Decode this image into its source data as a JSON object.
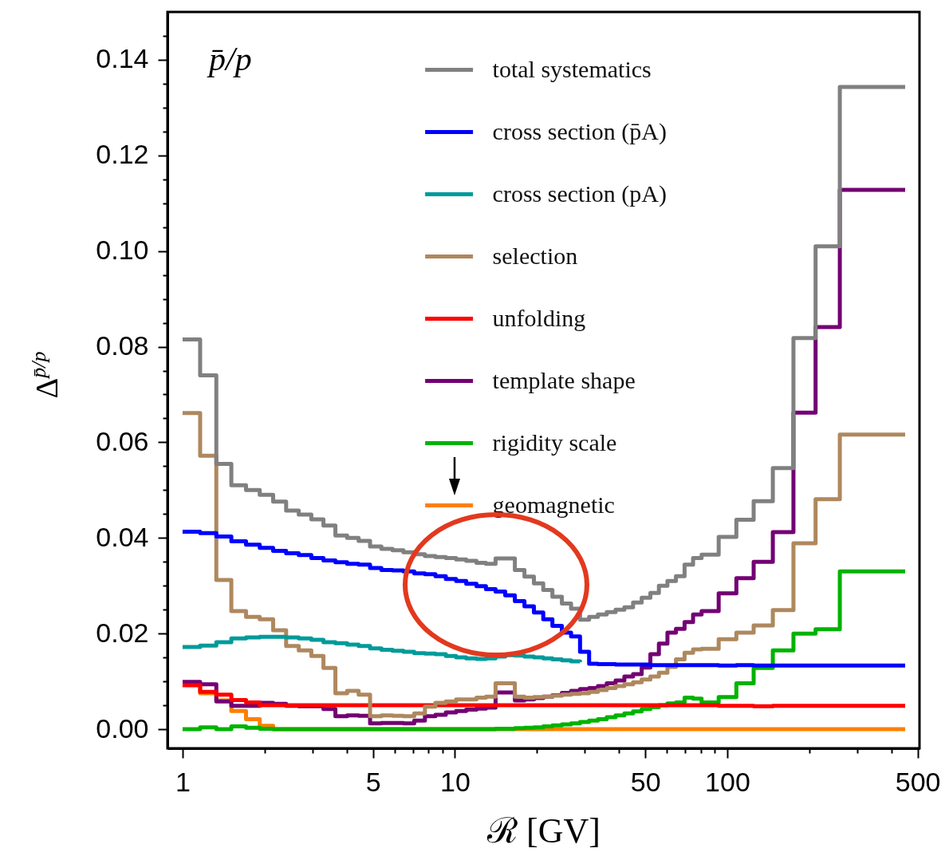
{
  "chart_data": {
    "type": "step",
    "title": "p̄/p",
    "xlabel": "ℛ [GV]",
    "ylabel": "Δ$^{p̄/p}$",
    "log": "x",
    "legend": "top right",
    "x": [
      1.0,
      1.16,
      1.33,
      1.51,
      1.71,
      1.92,
      2.15,
      2.4,
      2.67,
      2.97,
      3.29,
      3.64,
      4.02,
      4.43,
      4.88,
      5.37,
      5.9,
      6.47,
      7.09,
      7.76,
      8.48,
      9.26,
      10.1,
      11.0,
      12.0,
      13.0,
      14.1,
      15.3,
      16.6,
      18.0,
      19.5,
      21.1,
      22.8,
      24.7,
      26.7,
      28.8,
      31.1,
      33.5,
      36.1,
      38.9,
      41.9,
      45.1,
      48.5,
      52.2,
      56.1,
      60.3,
      64.8,
      69.7,
      74.9,
      80.5,
      93.0,
      108,
      125,
      147,
      175,
      211,
      259,
      450
    ],
    "xlim": [
      0.88,
      508
    ],
    "xticks": [
      1,
      {
        "value": 2,
        "label": null
      },
      {
        "value": 3,
        "label": null
      },
      {
        "value": 4,
        "label": null
      },
      5,
      {
        "value": 6,
        "label": null
      },
      {
        "value": 7,
        "label": null
      },
      {
        "value": 8,
        "label": null
      },
      {
        "value": 9,
        "label": null
      },
      10,
      {
        "value": 20,
        "label": null
      },
      {
        "value": 30,
        "label": null
      },
      {
        "value": 40,
        "label": null
      },
      50,
      {
        "value": 60,
        "label": null
      },
      {
        "value": 70,
        "label": null
      },
      {
        "value": 80,
        "label": null
      },
      {
        "value": 90,
        "label": null
      },
      100,
      {
        "value": 200,
        "label": null
      },
      {
        "value": 300,
        "label": null
      },
      {
        "value": 400,
        "label": null
      },
      500
    ],
    "ylim": [
      -0.004,
      0.15
    ],
    "yticks": [
      {
        "value": 0,
        "label": "0.00"
      },
      {
        "value": 0.005,
        "label": null
      },
      {
        "value": 0.01,
        "label": null
      },
      {
        "value": 0.015,
        "label": null
      },
      0.02,
      {
        "value": 0.025,
        "label": null
      },
      {
        "value": 0.03,
        "label": null
      },
      {
        "value": 0.035,
        "label": null
      },
      0.04,
      {
        "value": 0.045,
        "label": null
      },
      {
        "value": 0.05,
        "label": null
      },
      {
        "value": 0.055,
        "label": null
      },
      0.06,
      {
        "value": 0.065,
        "label": null
      },
      {
        "value": 0.07,
        "label": null
      },
      {
        "value": 0.075,
        "label": null
      },
      0.08,
      {
        "value": 0.085,
        "label": null
      },
      {
        "value": 0.09,
        "label": null
      },
      {
        "value": 0.095,
        "label": null
      },
      {
        "value": 0.1,
        "label": "0.10"
      },
      {
        "value": 0.105,
        "label": null
      },
      {
        "value": 0.11,
        "label": null
      },
      {
        "value": 0.115,
        "label": null
      },
      0.12,
      {
        "value": 0.125,
        "label": null
      },
      {
        "value": 0.13,
        "label": null
      },
      {
        "value": 0.135,
        "label": null
      },
      0.14,
      {
        "value": 0.145,
        "label": null
      }
    ],
    "series": [
      {
        "name": "total systematics",
        "color": "#808080",
        "values": [
          0.0815,
          0.074,
          0.0555,
          0.051,
          0.05,
          0.049,
          0.0476,
          0.0457,
          0.0449,
          0.0439,
          0.0426,
          0.0405,
          0.04,
          0.0394,
          0.0382,
          0.0377,
          0.0374,
          0.037,
          0.0366,
          0.0362,
          0.036,
          0.0358,
          0.0355,
          0.0352,
          0.0348,
          0.0346,
          0.0357,
          0.0357,
          0.0333,
          0.0319,
          0.0305,
          0.0291,
          0.0277,
          0.0263,
          0.0252,
          0.0229,
          0.0235,
          0.024,
          0.0245,
          0.025,
          0.0255,
          0.0265,
          0.0275,
          0.0285,
          0.03,
          0.031,
          0.032,
          0.0344,
          0.0358,
          0.0365,
          0.0402,
          0.0438,
          0.0477,
          0.0546,
          0.0818,
          0.101,
          0.1343,
          0.1343
        ]
      },
      {
        "name": "cross section (p̄A)",
        "color": "#0000ff",
        "values": [
          0.0413,
          0.041,
          0.0403,
          0.0393,
          0.0386,
          0.0379,
          0.0373,
          0.0368,
          0.0364,
          0.0358,
          0.0353,
          0.0349,
          0.0346,
          0.0344,
          0.0337,
          0.0333,
          0.0332,
          0.033,
          0.0326,
          0.0324,
          0.032,
          0.0314,
          0.031,
          0.0304,
          0.0299,
          0.0293,
          0.0288,
          0.028,
          0.0268,
          0.0257,
          0.0244,
          0.023,
          0.0216,
          0.0202,
          0.0194,
          0.0162,
          0.0137,
          0.0136,
          0.0136,
          0.0135,
          0.0135,
          0.0135,
          0.0135,
          0.0134,
          0.0134,
          0.0134,
          0.0134,
          0.0134,
          0.0134,
          0.0134,
          0.0133,
          0.0134,
          0.0133,
          0.0133,
          0.0133,
          0.0133,
          0.0133,
          0.0133
        ]
      },
      {
        "name": "cross section (pA)",
        "color": "#009a9a",
        "values": [
          0.0172,
          0.0175,
          0.0182,
          0.019,
          0.0192,
          0.0193,
          0.0193,
          0.0192,
          0.019,
          0.0187,
          0.0182,
          0.018,
          0.0177,
          0.0174,
          0.0169,
          0.0166,
          0.0164,
          0.0162,
          0.0159,
          0.0158,
          0.0157,
          0.0153,
          0.015,
          0.0148,
          0.0147,
          0.0148,
          0.0152,
          0.0155,
          0.0154,
          0.0152,
          0.015,
          0.0148,
          0.0146,
          0.0144,
          0.0142,
          0.014,
          null,
          null,
          null,
          null,
          null,
          null,
          null,
          null,
          null,
          null,
          null,
          null,
          null,
          null,
          null,
          null,
          null,
          null,
          null,
          null,
          null,
          null
        ]
      },
      {
        "name": "selection",
        "color": "#ae885e",
        "values": [
          0.0661,
          0.0572,
          0.0312,
          0.0247,
          0.0235,
          0.023,
          0.0207,
          0.0174,
          0.0165,
          0.0153,
          0.0128,
          0.0075,
          0.008,
          0.0072,
          0.0027,
          0.0029,
          0.0028,
          0.0027,
          0.0033,
          0.0047,
          0.0055,
          0.0058,
          0.0062,
          0.0062,
          0.0066,
          0.0068,
          0.0096,
          0.0096,
          0.0068,
          0.0066,
          0.0067,
          0.0068,
          0.007,
          0.0072,
          0.0074,
          0.0075,
          0.0078,
          0.0082,
          0.0086,
          0.009,
          0.0094,
          0.0098,
          0.0104,
          0.011,
          0.0118,
          0.013,
          0.0146,
          0.016,
          0.0167,
          0.0168,
          0.0188,
          0.0202,
          0.0217,
          0.0249,
          0.0389,
          0.0481,
          0.0616,
          0.0616
        ]
      },
      {
        "name": "unfolding",
        "color": "#ff0000",
        "values": [
          0.0092,
          0.0078,
          0.0072,
          0.0061,
          0.0056,
          0.005,
          0.005,
          0.005,
          0.005,
          0.005,
          0.005,
          0.005,
          0.005,
          0.005,
          0.005,
          0.005,
          0.005,
          0.005,
          0.005,
          0.005,
          0.005,
          0.005,
          0.005,
          0.005,
          0.005,
          0.005,
          0.005,
          0.005,
          0.005,
          0.005,
          0.005,
          0.005,
          0.005,
          0.005,
          0.005,
          0.005,
          0.005,
          0.005,
          0.005,
          0.005,
          0.005,
          0.005,
          0.005,
          0.005,
          0.005,
          0.005,
          0.005,
          0.005,
          0.005,
          0.005,
          0.0049,
          0.0049,
          0.0048,
          0.0049,
          0.0049,
          0.0049,
          0.0049,
          0.0049
        ]
      },
      {
        "name": "template shape",
        "color": "#730073",
        "values": [
          0.0099,
          0.0094,
          0.0058,
          0.0049,
          0.0049,
          0.0055,
          0.0053,
          0.0049,
          0.0048,
          0.0048,
          0.0042,
          0.0027,
          0.0029,
          0.0028,
          0.0012,
          0.0013,
          0.0013,
          0.0012,
          0.0018,
          0.0027,
          0.003,
          0.0035,
          0.0038,
          0.0041,
          0.0043,
          0.0045,
          0.0077,
          0.0077,
          0.006,
          0.0062,
          0.0065,
          0.0068,
          0.0071,
          0.0076,
          0.008,
          0.0084,
          0.0086,
          0.009,
          0.0096,
          0.0102,
          0.011,
          0.0115,
          0.0129,
          0.0157,
          0.0179,
          0.0202,
          0.021,
          0.0224,
          0.024,
          0.0247,
          0.0284,
          0.0316,
          0.035,
          0.0412,
          0.0662,
          0.0841,
          0.1128,
          0.1128
        ]
      },
      {
        "name": "rigidity scale",
        "color": "#00b300",
        "values": [
          0,
          0.0004,
          0,
          0.0006,
          0.0003,
          0.0001,
          0,
          0,
          0,
          0,
          0,
          0,
          0,
          0,
          0,
          0,
          0,
          0,
          0,
          0,
          0,
          0,
          0,
          0,
          0,
          0,
          0.0001,
          0.0001,
          0.0002,
          0.0003,
          0.0004,
          0.0006,
          0.0008,
          0.001,
          0.0012,
          0.0015,
          0.0018,
          0.0021,
          0.0025,
          0.0029,
          0.0033,
          0.0037,
          0.0042,
          0.0046,
          0.005,
          0.0054,
          0.0056,
          0.0066,
          0.0064,
          0.0056,
          0.0067,
          0.0096,
          0.0128,
          0.0165,
          0.02,
          0.0209,
          0.033,
          0.033
        ]
      },
      {
        "name": "geomagnetic",
        "color": "#ff8000",
        "values": [
          0.0093,
          0.0075,
          0.006,
          0.0038,
          0.0021,
          0.0007,
          0,
          0,
          0,
          0,
          0,
          0,
          0,
          0,
          0,
          0,
          0,
          0,
          0,
          0,
          0,
          0,
          0,
          0,
          0,
          0,
          0,
          0,
          0,
          0,
          0,
          0,
          0,
          0,
          0,
          0,
          0,
          0,
          0,
          0,
          0,
          0,
          0,
          0,
          0,
          0,
          0,
          0,
          0,
          0,
          0,
          0,
          0,
          0,
          0,
          0,
          0,
          0
        ]
      }
    ]
  }
}
